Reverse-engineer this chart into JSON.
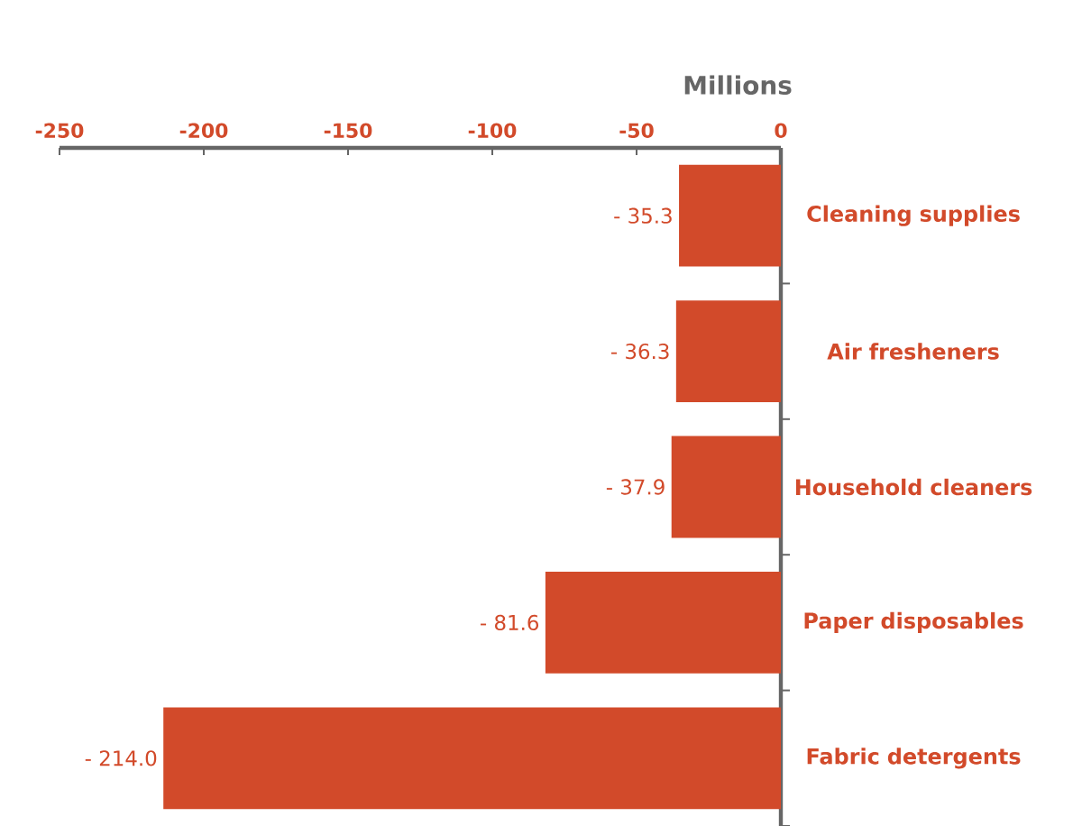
{
  "chart_data": {
    "type": "bar",
    "orientation": "horizontal",
    "title": "Millions",
    "categories": [
      "Cleaning supplies",
      "Air fresheners",
      "Household cleaners",
      "Paper disposables",
      "Fabric detergents"
    ],
    "values": [
      -35.3,
      -36.3,
      -37.9,
      -81.6,
      -214.0
    ],
    "value_labels": [
      "- 35.3",
      "- 36.3",
      "- 37.9",
      "- 81.6",
      "- 214.0"
    ],
    "color": "#d24a2a",
    "xlim": [
      -250,
      0
    ],
    "xticks": [
      -250,
      -200,
      -150,
      -100,
      -50,
      0
    ]
  }
}
